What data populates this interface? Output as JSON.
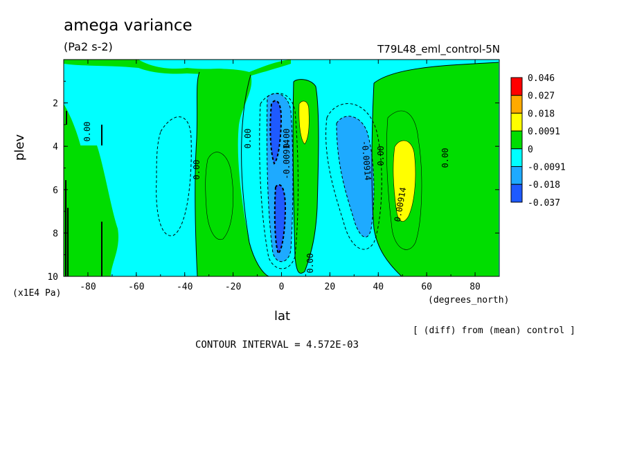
{
  "title": "amega variance",
  "units": "(Pa2 s-2)",
  "run_label": "T79L48_eml_control-5N",
  "diff_note": "[ (diff) from (mean) control ]",
  "contour_interval": "CONTOUR INTERVAL = 4.572E-03",
  "colors": {
    "red": "#ff0000",
    "orange": "#ffaa00",
    "yellow": "#ffff00",
    "green": "#00dd00",
    "cyan": "#00ffff",
    "lightblue": "#1eaaff",
    "blue": "#1e5aff"
  },
  "chart_data": {
    "type": "heatmap",
    "title": "amega variance",
    "units": "(Pa2 s-2)",
    "xlabel": "lat",
    "xunit": "(degrees_north)",
    "ylabel": "plev",
    "yunit": "(x1E4 Pa)",
    "xlim": [
      -90,
      90
    ],
    "ylim": [
      10,
      0
    ],
    "xticks": [
      -80,
      -60,
      -40,
      -20,
      0,
      20,
      40,
      60,
      80
    ],
    "yticks": [
      2,
      4,
      6,
      8,
      10
    ],
    "colorbar": {
      "levels": [
        "0.046",
        "0.027",
        "0.018",
        "0.0091",
        "0",
        "-0.0091",
        "-0.018",
        "-0.037"
      ],
      "colors": [
        "#ff0000",
        "#ffaa00",
        "#ffff00",
        "#00dd00",
        "#00ffff",
        "#1eaaff",
        "#1e5aff"
      ]
    },
    "contour_labels": [
      "0.00",
      "0.00",
      "0.00",
      "0.00",
      "0.00",
      "0.00",
      "-0.00914",
      "-0.00914",
      "0.00914",
      "0.00"
    ],
    "contour_interval": 0.004572
  }
}
